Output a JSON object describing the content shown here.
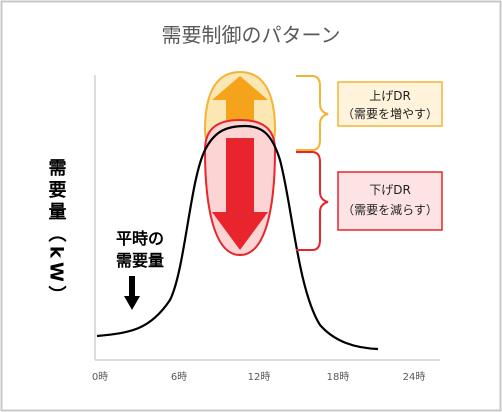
{
  "title": "需要制御のパターン",
  "y_axis_label": "需要量（kW）",
  "baseline_label": "平時の需要量",
  "x_ticks": [
    "0時",
    "6時",
    "12時",
    "18時",
    "24時"
  ],
  "upward_dr": {
    "label_line1": "上げDR",
    "label_line2": "（需要を増やす）",
    "color": "#f5b335",
    "fill": "#fbe7b3"
  },
  "downward_dr": {
    "label_line1": "下げDR",
    "label_line2": "（需要を減らす）",
    "color": "#e8252d",
    "fill": "#fde3e3"
  },
  "colors": {
    "frame": "#c8c8c8",
    "axis": "#d0d0d0",
    "curve": "#000000"
  }
}
